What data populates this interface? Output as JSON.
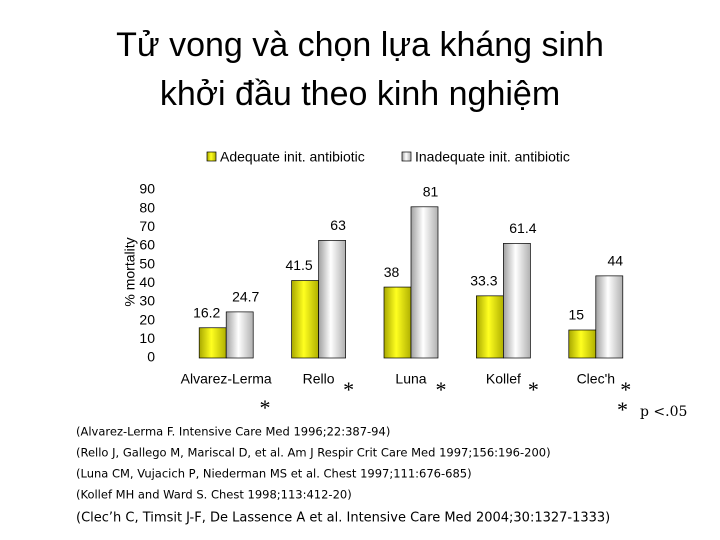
{
  "chart_data": {
    "type": "bar",
    "title": [
      "Tử vong và chọn lựa kháng sinh",
      "khởi đầu theo kinh nghiệm"
    ],
    "ylabel": "% mortality",
    "categories": [
      "Alvarez-Lerma",
      "Rello",
      "Luna",
      "Kollef",
      "Clec'h"
    ],
    "series": [
      {
        "name": "Adequate init. antibiotic",
        "color": "#e0e000",
        "values": [
          16.2,
          41.5,
          38,
          33.3,
          15
        ]
      },
      {
        "name": "Inadequate init. antibiotic",
        "color": "#d8d8d8",
        "values": [
          24.7,
          63,
          81,
          61.4,
          44
        ]
      }
    ],
    "ylim": [
      0,
      90
    ],
    "yticks": [
      0,
      10,
      20,
      30,
      40,
      50,
      60,
      70,
      80,
      90
    ],
    "legend": "top",
    "significance_markers": [
      "*",
      "*",
      "*",
      "*",
      "*"
    ],
    "significance_note": {
      "marker": "*",
      "text": "p <.05"
    }
  },
  "references": [
    "(Alvarez-Lerma F. Intensive Care Med 1996;22:387-94)",
    "(Rello J, Gallego M, Mariscal D, et al. Am J Respir Crit Care Med 1997;156:196-200)",
    "(Luna CM, Vujacich P, Niederman MS et al. Chest 1997;111:676-685)",
    "(Kollef MH and Ward S. Chest 1998;113:412-20)",
    "(Clec’h C, Timsit J-F, De Lassence A et al. Intensive Care Med 2004;30:1327-1333)"
  ]
}
